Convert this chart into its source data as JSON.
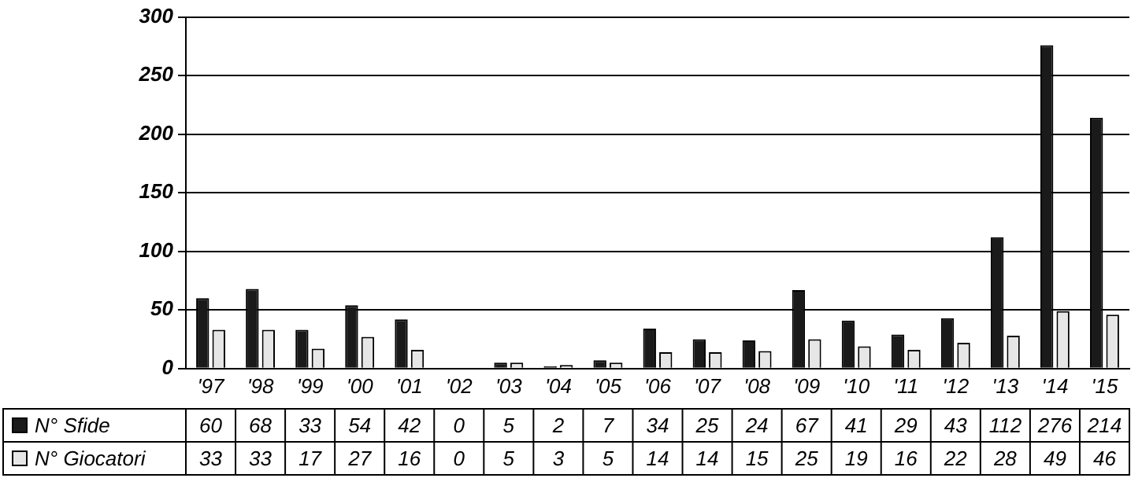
{
  "chart_data": {
    "type": "bar",
    "categories": [
      "'97",
      "'98",
      "'99",
      "'00",
      "'01",
      "'02",
      "'03",
      "'04",
      "'05",
      "'06",
      "'07",
      "'08",
      "'09",
      "'10",
      "'11",
      "'12",
      "'13",
      "'14",
      "'15"
    ],
    "series": [
      {
        "name": "N° Sfide",
        "color": "#1a1a1a",
        "values": [
          60,
          68,
          33,
          54,
          42,
          0,
          5,
          2,
          7,
          34,
          25,
          24,
          67,
          41,
          29,
          43,
          112,
          276,
          214
        ]
      },
      {
        "name": "N° Giocatori",
        "color": "#e6e6e6",
        "values": [
          33,
          33,
          17,
          27,
          16,
          0,
          5,
          3,
          5,
          14,
          14,
          15,
          25,
          19,
          16,
          22,
          28,
          49,
          46
        ]
      }
    ],
    "ylim": [
      0,
      300
    ],
    "yticks": [
      0,
      50,
      100,
      150,
      200,
      250,
      300
    ],
    "grid": "y",
    "data_labels": true,
    "legend": "bottom left"
  }
}
